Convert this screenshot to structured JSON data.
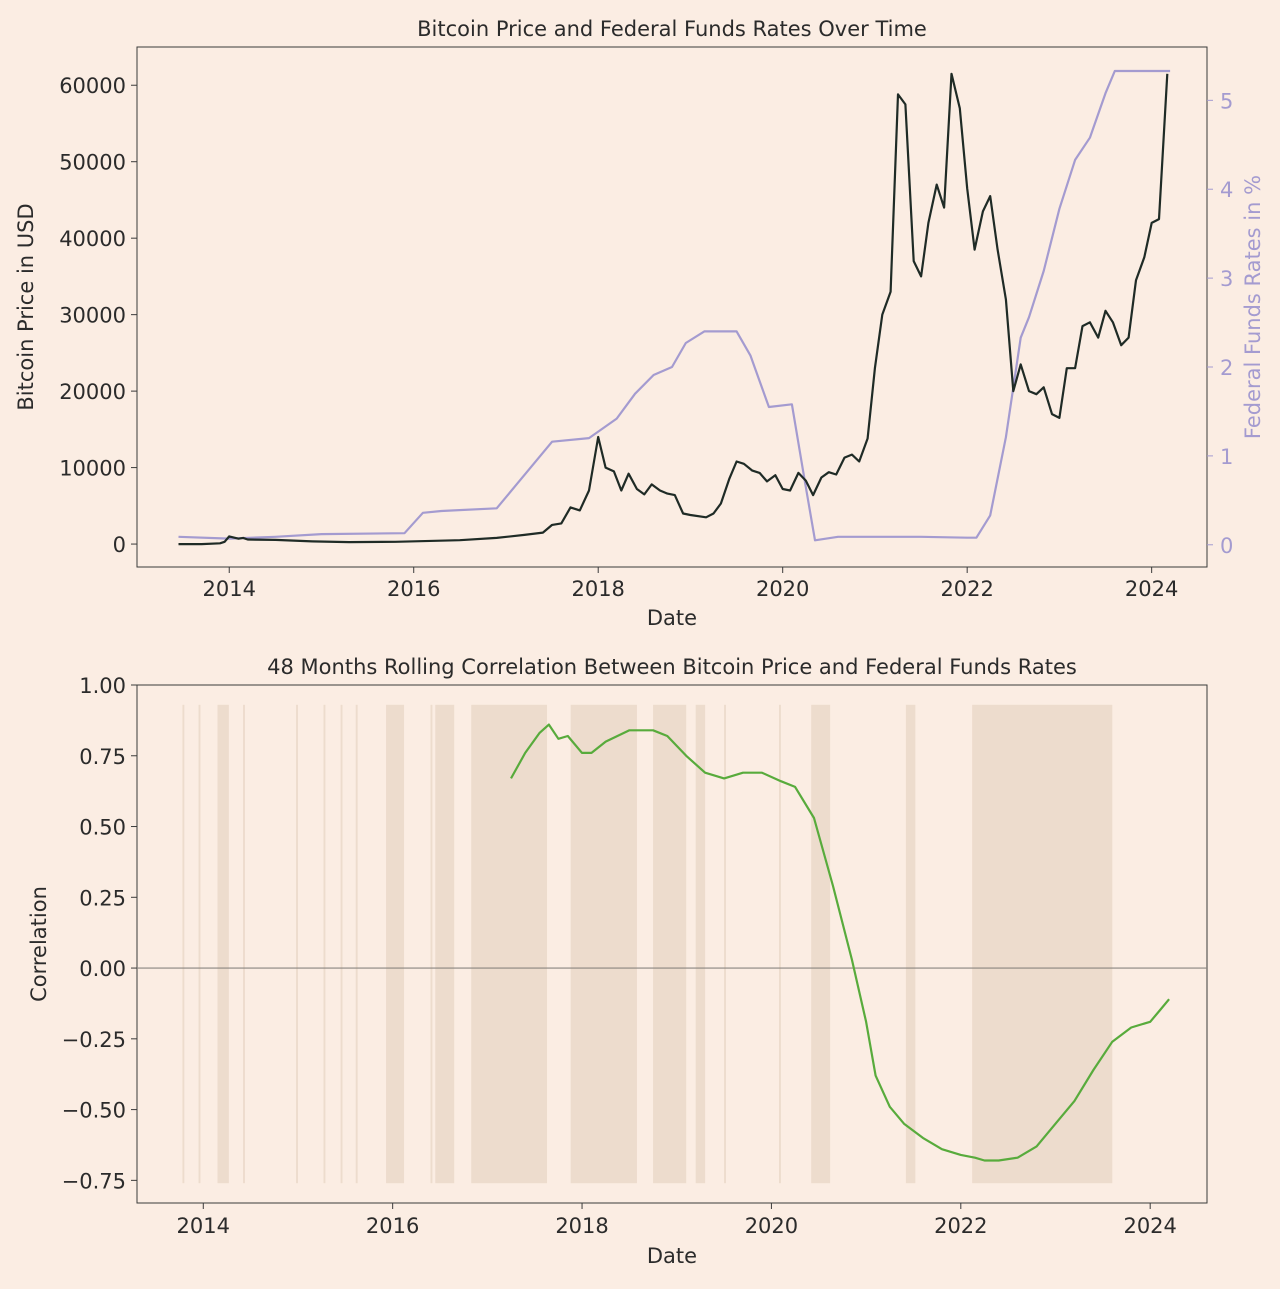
{
  "colors": {
    "background": "#fbede3",
    "text": "#2b2b2b",
    "btc_line": "#1f2b26",
    "rate_line": "#a49bd0",
    "rate_axis": "#a49bd0",
    "corr_line": "#58ab3c",
    "shade": "#eddccd",
    "zero_line": "#8a8580"
  },
  "chart_data": [
    {
      "type": "line",
      "title": "Bitcoin Price and Federal Funds Rates Over Time",
      "xlabel": "Date",
      "ylabel": "Bitcoin Price in USD",
      "y2label": "Federal Funds Rates in %",
      "xlim": [
        2013.0,
        2024.6
      ],
      "ylim": [
        -3000,
        65000
      ],
      "y2lim": [
        -0.25,
        5.6
      ],
      "xticks": [
        2014,
        2016,
        2018,
        2020,
        2022,
        2024
      ],
      "xtick_labels": [
        "2014",
        "2016",
        "2018",
        "2020",
        "2022",
        "2024"
      ],
      "yticks": [
        0,
        10000,
        20000,
        30000,
        40000,
        50000,
        60000
      ],
      "ytick_labels": [
        "0",
        "10000",
        "20000",
        "30000",
        "40000",
        "50000",
        "60000"
      ],
      "y2ticks": [
        0,
        1,
        2,
        3,
        4,
        5
      ],
      "y2tick_labels": [
        "0",
        "1",
        "2",
        "3",
        "4",
        "5"
      ],
      "grid": false,
      "legend": "none",
      "series": [
        {
          "axis": "left",
          "x": [
            2013.45,
            2013.7,
            2013.9,
            2013.95,
            2014.0,
            2014.1,
            2014.15,
            2014.2,
            2014.5,
            2014.9,
            2015.3,
            2015.8,
            2016.5,
            2016.9,
            2017.2,
            2017.4,
            2017.5,
            2017.6,
            2017.7,
            2017.8,
            2017.9,
            2018.0,
            2018.08,
            2018.17,
            2018.25,
            2018.33,
            2018.42,
            2018.5,
            2018.58,
            2018.67,
            2018.75,
            2018.83,
            2018.92,
            2019.0,
            2019.17,
            2019.25,
            2019.33,
            2019.42,
            2019.5,
            2019.58,
            2019.67,
            2019.75,
            2019.83,
            2019.92,
            2020.0,
            2020.08,
            2020.17,
            2020.25,
            2020.33,
            2020.42,
            2020.5,
            2020.58,
            2020.67,
            2020.75,
            2020.83,
            2020.92,
            2021.0,
            2021.08,
            2021.17,
            2021.25,
            2021.33,
            2021.42,
            2021.5,
            2021.58,
            2021.67,
            2021.75,
            2021.83,
            2021.92,
            2022.0,
            2022.08,
            2022.17,
            2022.25,
            2022.33,
            2022.42,
            2022.5,
            2022.58,
            2022.67,
            2022.75,
            2022.83,
            2022.92,
            2023.0,
            2023.08,
            2023.17,
            2023.25,
            2023.33,
            2023.42,
            2023.5,
            2023.58,
            2023.67,
            2023.75,
            2023.83,
            2023.92,
            2024.0,
            2024.08,
            2024.17
          ],
          "y": [
            0,
            0,
            100,
            300,
            1000,
            700,
            800,
            600,
            550,
            350,
            250,
            300,
            500,
            800,
            1200,
            1500,
            2500,
            2700,
            4800,
            4400,
            7000,
            14000,
            10000,
            9500,
            7000,
            9200,
            7200,
            6500,
            7800,
            7000,
            6600,
            6400,
            4000,
            3800,
            3500,
            4000,
            5300,
            8500,
            10800,
            10500,
            9600,
            9300,
            8200,
            9000,
            7200,
            7000,
            9300,
            8300,
            6400,
            8700,
            9400,
            9100,
            11300,
            11700,
            10800,
            13800,
            23000,
            30000,
            33000,
            58800,
            57500,
            37000,
            35000,
            42000,
            47000,
            44000,
            61500,
            57000,
            46500,
            38500,
            43500,
            45500,
            38500,
            32000,
            20000,
            23500,
            20000,
            19600,
            20500,
            17000,
            16500,
            23000,
            23000,
            28500,
            29000,
            27000,
            30500,
            29000,
            26000,
            27000,
            34500,
            37500,
            42000,
            42500,
            61500
          ]
        },
        {
          "axis": "right",
          "x": [
            2013.45,
            2014.0,
            2014.5,
            2015.0,
            2015.9,
            2016.1,
            2016.3,
            2016.9,
            2017.1,
            2017.3,
            2017.5,
            2017.9,
            2018.2,
            2018.4,
            2018.6,
            2018.8,
            2018.95,
            2019.15,
            2019.5,
            2019.65,
            2019.85,
            2020.1,
            2020.25,
            2020.35,
            2020.6,
            2021.0,
            2021.5,
            2022.0,
            2022.1,
            2022.25,
            2022.42,
            2022.58,
            2022.67,
            2022.83,
            2023.0,
            2023.17,
            2023.33,
            2023.5,
            2023.6,
            2024.2
          ],
          "y": [
            0.09,
            0.07,
            0.09,
            0.12,
            0.13,
            0.36,
            0.38,
            0.41,
            0.66,
            0.91,
            1.16,
            1.2,
            1.42,
            1.7,
            1.91,
            2.0,
            2.27,
            2.4,
            2.4,
            2.13,
            1.55,
            1.58,
            0.65,
            0.05,
            0.09,
            0.09,
            0.09,
            0.08,
            0.08,
            0.33,
            1.21,
            2.33,
            2.56,
            3.08,
            3.78,
            4.33,
            4.58,
            5.08,
            5.33,
            5.33
          ]
        }
      ]
    },
    {
      "type": "line",
      "title": "48 Months Rolling Correlation Between Bitcoin Price and Federal Funds Rates",
      "xlabel": "Date",
      "ylabel": "Correlation",
      "xlim": [
        2013.3,
        2024.6
      ],
      "ylim": [
        -0.83,
        1.0
      ],
      "xticks": [
        2014,
        2016,
        2018,
        2020,
        2022,
        2024
      ],
      "xtick_labels": [
        "2014",
        "2016",
        "2018",
        "2020",
        "2022",
        "2024"
      ],
      "yticks": [
        1.0,
        0.75,
        0.5,
        0.25,
        0.0,
        -0.25,
        -0.5,
        -0.75
      ],
      "ytick_labels": [
        "1.00",
        "0.75",
        "0.50",
        "0.25",
        "0.00",
        "−0.25",
        "−0.50",
        "−0.75"
      ],
      "grid": false,
      "legend": "none",
      "zero_line": 0,
      "shaded_x_ranges": [
        [
          2013.78,
          2013.8
        ],
        [
          2013.95,
          2013.97
        ],
        [
          2014.15,
          2014.27
        ],
        [
          2014.42,
          2014.44
        ],
        [
          2014.98,
          2015.0
        ],
        [
          2015.27,
          2015.29
        ],
        [
          2015.45,
          2015.47
        ],
        [
          2015.61,
          2015.63
        ],
        [
          2015.93,
          2016.12
        ],
        [
          2016.4,
          2016.42
        ],
        [
          2016.45,
          2016.65
        ],
        [
          2016.83,
          2017.63
        ],
        [
          2017.88,
          2018.58
        ],
        [
          2018.75,
          2019.1
        ],
        [
          2019.2,
          2019.3
        ],
        [
          2019.5,
          2019.52
        ],
        [
          2020.08,
          2020.1
        ],
        [
          2020.42,
          2020.62
        ],
        [
          2021.42,
          2021.52
        ],
        [
          2022.12,
          2023.6
        ]
      ],
      "shaded_y_range": [
        -0.76,
        0.93
      ],
      "series": [
        {
          "x": [
            2017.25,
            2017.4,
            2017.55,
            2017.65,
            2017.75,
            2017.85,
            2018.0,
            2018.1,
            2018.25,
            2018.5,
            2018.75,
            2018.9,
            2019.1,
            2019.3,
            2019.5,
            2019.7,
            2019.9,
            2020.1,
            2020.25,
            2020.45,
            2020.65,
            2020.85,
            2021.0,
            2021.1,
            2021.25,
            2021.4,
            2021.6,
            2021.8,
            2022.0,
            2022.15,
            2022.25,
            2022.4,
            2022.6,
            2022.8,
            2023.0,
            2023.2,
            2023.4,
            2023.6,
            2023.8,
            2024.0,
            2024.1,
            2024.2
          ],
          "y": [
            0.67,
            0.76,
            0.83,
            0.86,
            0.81,
            0.82,
            0.76,
            0.76,
            0.8,
            0.84,
            0.84,
            0.82,
            0.75,
            0.69,
            0.67,
            0.69,
            0.69,
            0.66,
            0.64,
            0.53,
            0.29,
            0.03,
            -0.19,
            -0.38,
            -0.49,
            -0.55,
            -0.6,
            -0.64,
            -0.66,
            -0.67,
            -0.68,
            -0.68,
            -0.67,
            -0.63,
            -0.55,
            -0.47,
            -0.36,
            -0.26,
            -0.21,
            -0.19,
            -0.15,
            -0.11
          ]
        }
      ]
    }
  ]
}
